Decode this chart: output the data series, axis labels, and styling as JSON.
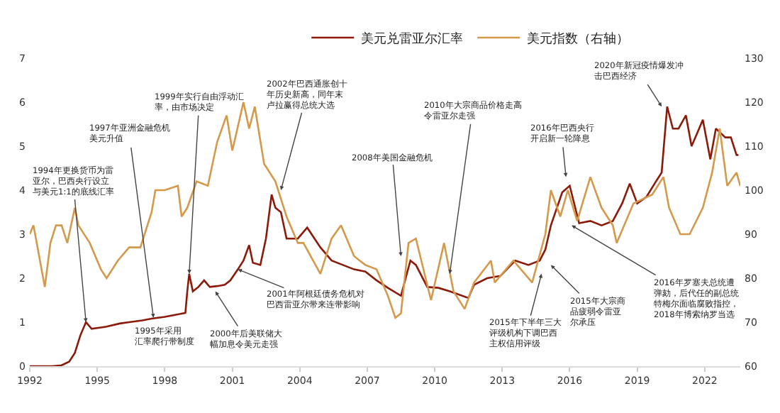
{
  "chart_data": {
    "type": "line",
    "xlim": [
      "1992-01-01",
      "2023-08-01"
    ],
    "xticks": [
      {
        "value": "1992-01-01",
        "label": "1992"
      },
      {
        "value": "1995-01-01",
        "label": "1995"
      },
      {
        "value": "1998-01-01",
        "label": "1998"
      },
      {
        "value": "2001-01-01",
        "label": "2001"
      },
      {
        "value": "2004-01-01",
        "label": "2004"
      },
      {
        "value": "2007-01-01",
        "label": "2007"
      },
      {
        "value": "2010-01-01",
        "label": "2010"
      },
      {
        "value": "2013-01-01",
        "label": "2013"
      },
      {
        "value": "2016-01-01",
        "label": "2016"
      },
      {
        "value": "2019-01-01",
        "label": "2019"
      },
      {
        "value": "2022-01-01",
        "label": "2022"
      }
    ],
    "ylim": [
      0,
      7
    ],
    "yticks": [
      0,
      1,
      2,
      3,
      4,
      5,
      6,
      7
    ],
    "y2lim": [
      60,
      130
    ],
    "y2ticks": [
      60,
      70,
      80,
      90,
      100,
      110,
      120,
      130
    ],
    "legend": "top",
    "marker": "none",
    "line_style": "solid",
    "series": [
      {
        "name": "美元兑雷亚尔汇率",
        "color": "#8b1a0a",
        "x": [
          "1992-01",
          "1993-01",
          "1993-06",
          "1993-10",
          "1994-01",
          "1994-04",
          "1994-07",
          "1994-10",
          "1995-03",
          "1995-06",
          "1996-01",
          "1996-06",
          "1997-01",
          "1997-06",
          "1998-01",
          "1998-06",
          "1998-12",
          "1999-01",
          "1999-02",
          "1999-04",
          "1999-07",
          "1999-10",
          "2000-01",
          "2000-05",
          "2000-09",
          "2000-12",
          "2001-04",
          "2001-07",
          "2001-10",
          "2001-12",
          "2002-04",
          "2002-07",
          "2002-10",
          "2002-12",
          "2003-03",
          "2003-06",
          "2003-12",
          "2004-05",
          "2004-12",
          "2005-06",
          "2005-12",
          "2006-06",
          "2006-12",
          "2007-06",
          "2007-12",
          "2008-07",
          "2008-12",
          "2009-03",
          "2009-09",
          "2010-03",
          "2010-09",
          "2011-07",
          "2011-10",
          "2012-05",
          "2012-12",
          "2013-08",
          "2014-03",
          "2014-09",
          "2014-12",
          "2015-03",
          "2015-09",
          "2016-01",
          "2016-06",
          "2016-12",
          "2017-06",
          "2017-12",
          "2018-05",
          "2018-09",
          "2019-01",
          "2019-06",
          "2019-11",
          "2020-02",
          "2020-05",
          "2020-08",
          "2020-11",
          "2021-03",
          "2021-06",
          "2021-09",
          "2021-12",
          "2022-04",
          "2022-07",
          "2022-12",
          "2023-03",
          "2023-06",
          "2023-07"
        ],
        "values": [
          0,
          0,
          0.02,
          0.1,
          0.3,
          0.7,
          1.0,
          0.85,
          0.88,
          0.9,
          0.97,
          1.0,
          1.04,
          1.08,
          1.12,
          1.16,
          1.21,
          1.7,
          2.1,
          1.7,
          1.8,
          1.95,
          1.8,
          1.82,
          1.85,
          1.95,
          2.2,
          2.4,
          2.75,
          2.35,
          2.3,
          2.9,
          3.9,
          3.6,
          3.5,
          2.9,
          2.9,
          3.15,
          2.7,
          2.4,
          2.3,
          2.2,
          2.15,
          1.95,
          1.78,
          1.6,
          2.4,
          2.3,
          1.8,
          1.78,
          1.7,
          1.55,
          1.85,
          2.0,
          2.05,
          2.4,
          2.3,
          2.4,
          2.65,
          3.2,
          3.95,
          4.1,
          3.25,
          3.3,
          3.2,
          3.3,
          3.7,
          4.15,
          3.7,
          3.85,
          4.2,
          4.4,
          5.9,
          5.4,
          5.4,
          5.7,
          5.0,
          5.3,
          5.6,
          4.7,
          5.4,
          5.2,
          5.2,
          4.8,
          4.8
        ]
      },
      {
        "name": "美元指数（右轴）",
        "color": "#d4994a",
        "axis": "y2",
        "x": [
          "1992-01",
          "1992-03",
          "1992-09",
          "1992-12",
          "1993-03",
          "1993-06",
          "1993-09",
          "1994-01",
          "1994-03",
          "1994-09",
          "1995-03",
          "1995-06",
          "1995-12",
          "1996-06",
          "1996-12",
          "1997-06",
          "1997-08",
          "1998-01",
          "1998-08",
          "1998-10",
          "1999-01",
          "1999-06",
          "1999-12",
          "2000-05",
          "2000-10",
          "2001-01",
          "2001-07",
          "2001-10",
          "2002-01",
          "2002-06",
          "2002-12",
          "2003-06",
          "2003-12",
          "2004-03",
          "2004-12",
          "2005-06",
          "2005-11",
          "2006-06",
          "2006-12",
          "2007-06",
          "2007-12",
          "2008-04",
          "2008-07",
          "2008-11",
          "2009-03",
          "2009-11",
          "2010-06",
          "2010-11",
          "2011-05",
          "2011-10",
          "2012-07",
          "2012-09",
          "2013-07",
          "2014-05",
          "2014-12",
          "2015-03",
          "2015-08",
          "2015-12",
          "2016-05",
          "2016-12",
          "2017-06",
          "2017-12",
          "2018-02",
          "2018-11",
          "2019-09",
          "2020-03",
          "2020-06",
          "2020-12",
          "2021-05",
          "2021-12",
          "2022-05",
          "2022-09",
          "2023-01",
          "2023-06",
          "2023-08"
        ],
        "values": [
          90,
          92,
          78,
          88,
          92,
          92,
          88,
          96,
          92,
          88,
          82,
          80,
          84,
          87,
          87,
          95,
          100,
          100,
          101,
          94,
          96,
          102,
          101,
          111,
          117,
          109,
          120,
          114,
          119,
          106,
          102,
          94,
          88,
          88,
          81,
          89,
          92,
          85,
          83,
          82,
          76,
          71,
          72,
          88,
          89,
          75,
          88,
          77,
          73,
          79,
          84,
          79,
          84,
          79,
          90,
          100,
          94,
          100,
          93,
          103,
          96,
          92,
          88,
          97,
          99,
          103,
          96,
          90,
          90,
          96,
          104,
          114,
          101,
          104,
          101
        ]
      }
    ],
    "annotations": [
      {
        "text": "1994年更换货币为雷亚尔，巴西央行设立与美元1:1的底线汇率",
        "x": "1994-07",
        "y": 1.0
      },
      {
        "text": "1997年亚洲金融危机美元升值",
        "x": "1997-07",
        "y": 1.1
      },
      {
        "text": "1999年实行自由浮动汇率，由市场决定",
        "x": "1999-02",
        "y": 2.1
      },
      {
        "text": "2002年巴西通胀创十年历史新高，同年末卢拉赢得总统大选",
        "x": "2003-03",
        "y": 4.0
      },
      "1995年采用汇率爬行带制度",
      {
        "text": "2000年后美联储大幅加息令美元走强",
        "x": "2000-04",
        "y": 1.7
      },
      {
        "text": "2001年阿根廷债务危机对巴西雷亚尔带来连带影响",
        "x": "2001-04",
        "y": 2.2
      },
      {
        "text": "2008年美国金融危机",
        "x": "2008-07",
        "y": 2.5
      },
      {
        "text": "2010年大宗商品价格走高令雷亚尔走强",
        "x": "2010-09",
        "y": 2.1
      },
      {
        "text": "2015年下半年三大评级机构下调巴西主权信用评级",
        "x": "2014-10",
        "y": 2.1
      },
      {
        "text": "2015年大宗商品疲弱令雷亚尔承压",
        "x": "2015-03",
        "y": 2.3
      },
      {
        "text": "2016年巴西央行开启新一轮降息",
        "x": "2015-11",
        "y": 4.3
      },
      {
        "text": "2016年罗塞夫总统遭弹劾，后代任的副总统特梅尔面临腐败指控，2018年博索纳罗当选",
        "x": "2016-02",
        "y": 3.2
      },
      {
        "text": "2020年新冠疫情爆发冲击巴西经济",
        "x": "2020-02",
        "y": 5.9
      }
    ]
  }
}
